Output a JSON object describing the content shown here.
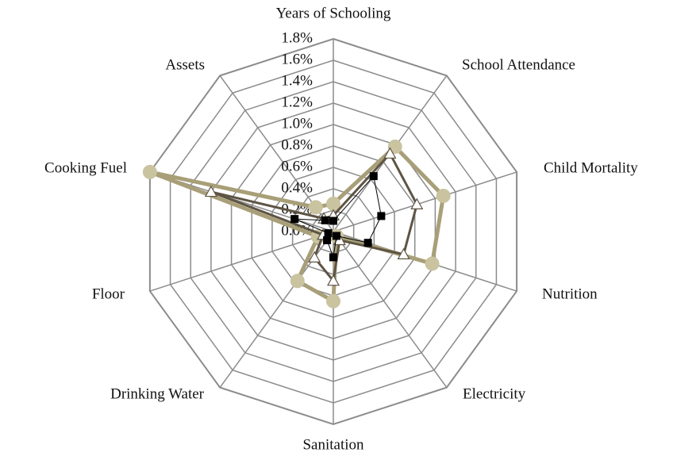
{
  "chart_data": {
    "type": "radar",
    "categories": [
      "Years of Schooling",
      "School Attendance",
      "Child Mortality",
      "Nutrition",
      "Electricity",
      "Sanitation",
      "Drinking Water",
      "Floor",
      "Cooking Fuel",
      "Assets"
    ],
    "ylim": [
      0,
      1.8
    ],
    "yticks": [
      {
        "value": 0,
        "label": "0.0%"
      },
      {
        "value": 0.2,
        "label": "0.2%"
      },
      {
        "value": 0.4,
        "label": "0.4%"
      },
      {
        "value": 0.6,
        "label": "0.6%"
      },
      {
        "value": 0.8,
        "label": "0.8%"
      },
      {
        "value": 1,
        "label": "1.0%"
      },
      {
        "value": 1.2,
        "label": "1.2%"
      },
      {
        "value": 1.4,
        "label": "1.4%"
      },
      {
        "value": 1.6,
        "label": "1.6%"
      },
      {
        "value": 1.8,
        "label": "1.8%"
      }
    ],
    "grid": true,
    "series": [
      {
        "color": "#a89f78",
        "marker": "circle",
        "values": [
          0.26,
          0.98,
          1.08,
          0.97,
          0.05,
          0.65,
          0.57,
          0.15,
          1.8,
          0.28
        ]
      },
      {
        "color": "#5e5444",
        "marker": "triangle",
        "values": [
          0.15,
          0.9,
          0.82,
          0.69,
          0.1,
          0.46,
          0.3,
          0.1,
          1.2,
          0.15
        ]
      },
      {
        "color": "#000000",
        "marker": "square",
        "values": [
          0.1,
          0.64,
          0.47,
          0.34,
          0.05,
          0.24,
          0.1,
          0.05,
          0.38,
          0.13
        ]
      }
    ]
  }
}
